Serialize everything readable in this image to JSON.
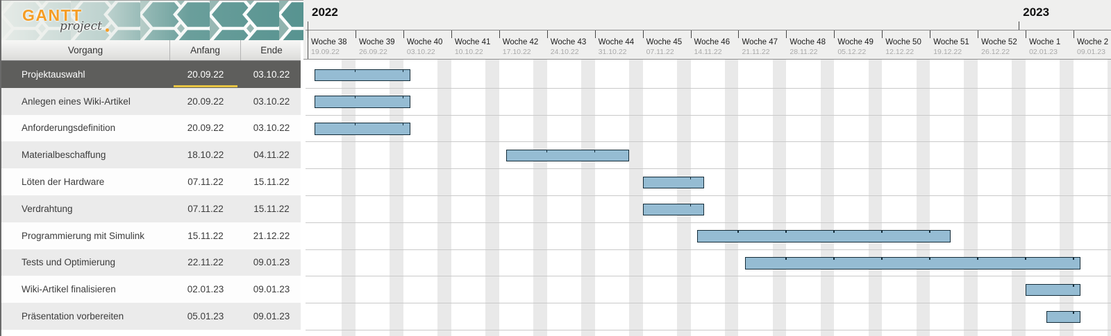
{
  "logo": {
    "title": "GANTT",
    "subtitle": "project"
  },
  "table": {
    "columns": {
      "0": "Vorgang",
      "1": "Anfang",
      "2": "Ende"
    },
    "selected_row": 0,
    "tasks": [
      {
        "name": "Projektauswahl",
        "start": "20.09.22",
        "end": "03.10.22"
      },
      {
        "name": "Anlegen eines Wiki-Artikel",
        "start": "20.09.22",
        "end": "03.10.22"
      },
      {
        "name": "Anforderungsdefinition",
        "start": "20.09.22",
        "end": "03.10.22"
      },
      {
        "name": "Materialbeschaffung",
        "start": "18.10.22",
        "end": "04.11.22"
      },
      {
        "name": "Löten der Hardware",
        "start": "07.11.22",
        "end": "15.11.22"
      },
      {
        "name": "Verdrahtung",
        "start": "07.11.22",
        "end": "15.11.22"
      },
      {
        "name": "Programmierung mit Simulink",
        "start": "15.11.22",
        "end": "21.12.22"
      },
      {
        "name": "Tests und Optimierung",
        "start": "22.11.22",
        "end": "09.01.23"
      },
      {
        "name": "Wiki-Artikel finalisieren",
        "start": "02.01.23",
        "end": "09.01.23"
      },
      {
        "name": "Präsentation vorbereiten",
        "start": "05.01.23",
        "end": "09.01.23"
      }
    ]
  },
  "timeline": {
    "base_date": "19.09.22",
    "years": [
      {
        "label": "2022",
        "date": "19.09.22",
        "at_chart_left": true
      },
      {
        "label": "2023",
        "date": "01.01.23",
        "at_chart_left": false
      }
    ],
    "weeks": [
      {
        "label": "Woche 38",
        "date": "19.09.22"
      },
      {
        "label": "Woche 39",
        "date": "26.09.22"
      },
      {
        "label": "Woche 40",
        "date": "03.10.22"
      },
      {
        "label": "Woche 41",
        "date": "10.10.22"
      },
      {
        "label": "Woche 42",
        "date": "17.10.22"
      },
      {
        "label": "Woche 43",
        "date": "24.10.22"
      },
      {
        "label": "Woche 44",
        "date": "31.10.22"
      },
      {
        "label": "Woche 45",
        "date": "07.11.22"
      },
      {
        "label": "Woche 46",
        "date": "14.11.22"
      },
      {
        "label": "Woche 47",
        "date": "21.11.22"
      },
      {
        "label": "Woche 48",
        "date": "28.11.22"
      },
      {
        "label": "Woche 49",
        "date": "05.12.22"
      },
      {
        "label": "Woche 50",
        "date": "12.12.22"
      },
      {
        "label": "Woche 51",
        "date": "19.12.22"
      },
      {
        "label": "Woche 52",
        "date": "26.12.22"
      },
      {
        "label": "Woche 1",
        "date": "02.01.23"
      },
      {
        "label": "Woche 2",
        "date": "09.01.23"
      }
    ]
  },
  "colors": {
    "bar_fill": "#95bcd3",
    "bar_border": "#132b38",
    "weekend": "#e9e9e9",
    "selected_row_bg": "#5e5e5c",
    "selected_row_text": "#ffffff",
    "selected_underline": "#e8c544",
    "row_alt": "#ebebeb",
    "row_plain": "#fdfdfd",
    "logo_accent": "#f59d25"
  }
}
